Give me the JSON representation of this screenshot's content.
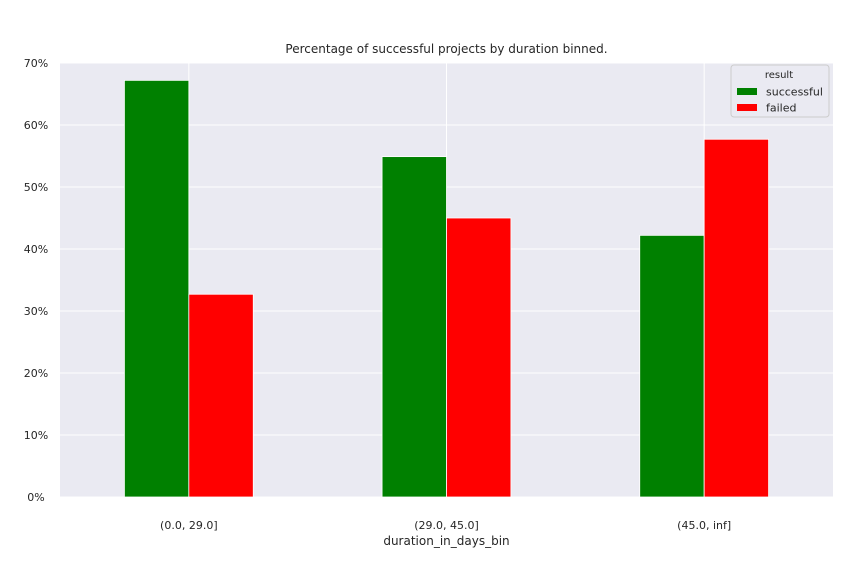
{
  "chart_data": {
    "type": "bar",
    "title": "Percentage of successful projects by duration binned.",
    "xlabel": "duration_in_days_bin",
    "ylabel": "",
    "categories": [
      "(0.0, 29.0]",
      "(29.0, 45.0]",
      "(45.0, inf]"
    ],
    "series": [
      {
        "name": "successful",
        "color": "#008000",
        "values": [
          0.672,
          0.549,
          0.422
        ]
      },
      {
        "name": "failed",
        "color": "#ff0000",
        "values": [
          0.327,
          0.45,
          0.577
        ]
      }
    ],
    "ylim": [
      0,
      0.7
    ],
    "yticks": [
      0,
      0.1,
      0.2,
      0.3,
      0.4,
      0.5,
      0.6,
      0.7
    ],
    "ytick_labels": [
      "0%",
      "10%",
      "20%",
      "30%",
      "40%",
      "50%",
      "60%",
      "70%"
    ],
    "grid": true,
    "background_color": "#eaeaf2",
    "grid_color": "#ffffff",
    "legend": {
      "title": "result",
      "position": "top-right"
    }
  }
}
